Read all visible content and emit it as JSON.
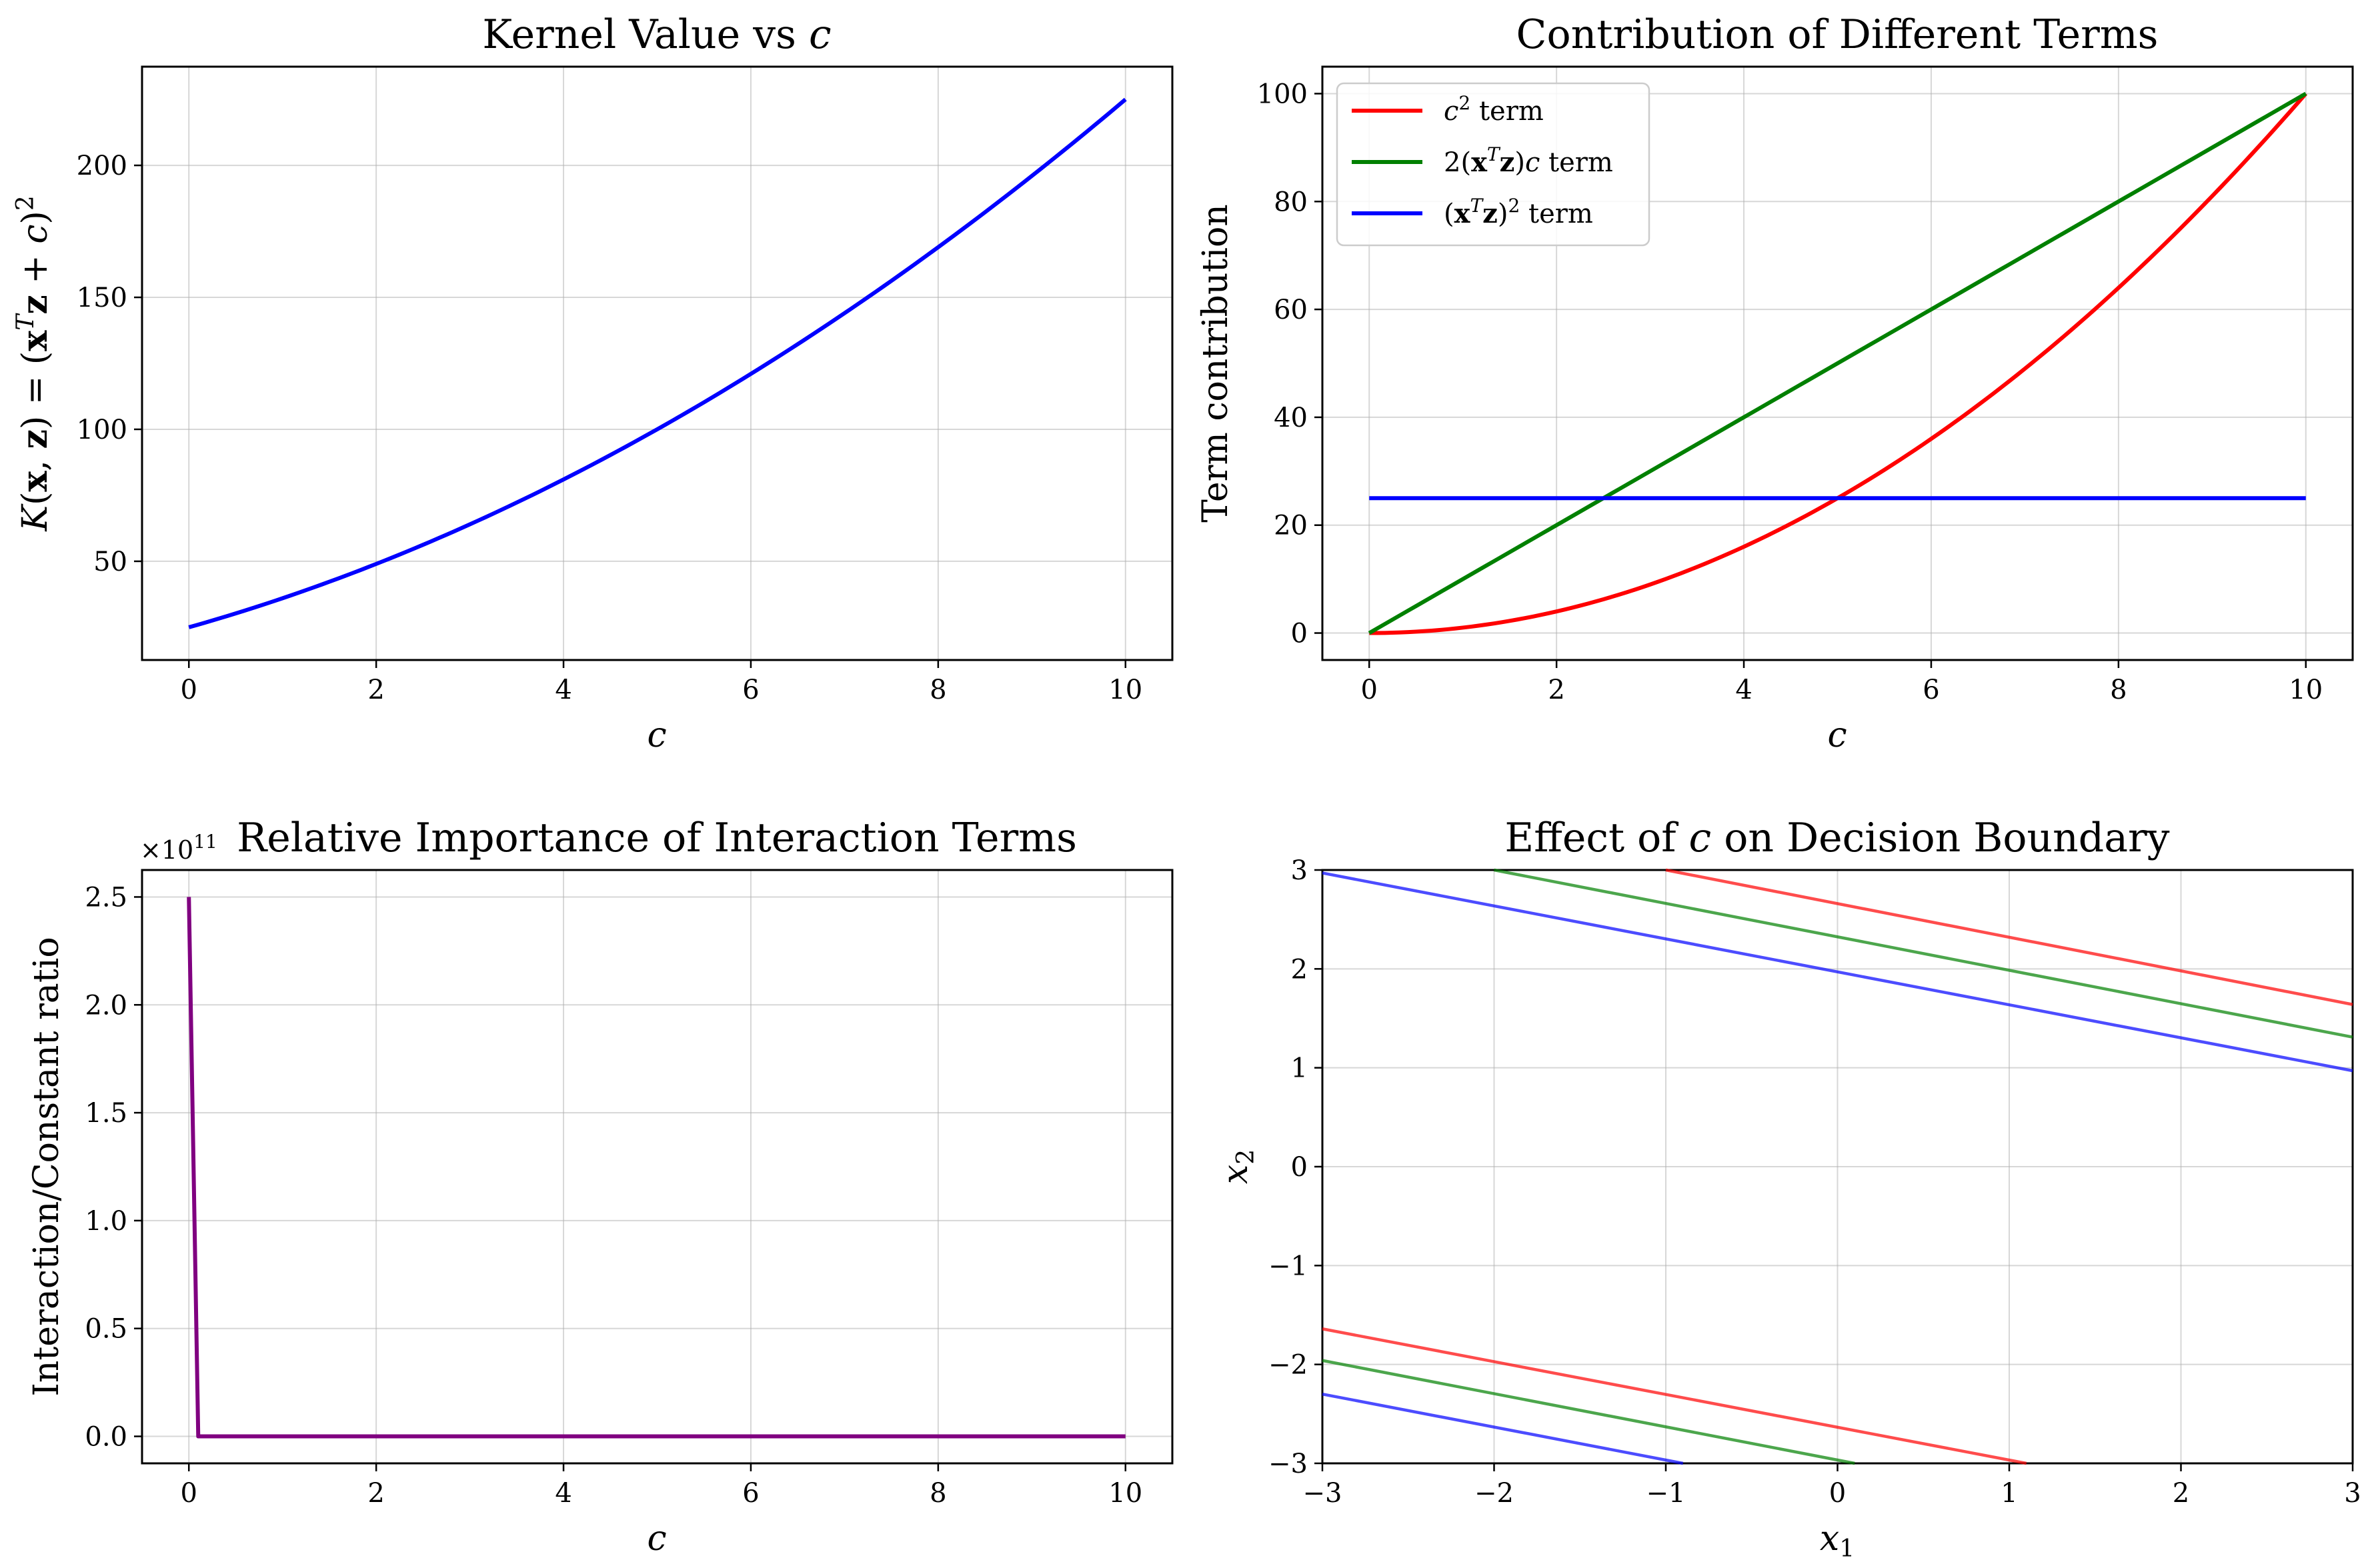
{
  "chart_data": [
    {
      "type": "line",
      "title": "Kernel Value vs c",
      "xlabel": "c",
      "ylabel": "K(x, z) = (xᵀz + c)²",
      "xlim": [
        -0.5,
        10.5
      ],
      "ylim": [
        12.6,
        237.4
      ],
      "xticks": [
        0,
        2,
        4,
        6,
        8,
        10
      ],
      "yticks": [
        50,
        100,
        150,
        200
      ],
      "grid": true,
      "series": [
        {
          "color": "#0000ff",
          "function": "(5 + c)^2",
          "x_range": [
            0,
            10
          ],
          "x": [
            0,
            1,
            2,
            3,
            4,
            5,
            6,
            7,
            8,
            9,
            10
          ],
          "values": [
            25,
            36,
            49,
            64,
            81,
            100,
            121,
            144,
            169,
            196,
            225
          ]
        }
      ]
    },
    {
      "type": "line",
      "title": "Contribution of Different Terms",
      "xlabel": "c",
      "ylabel": "Term contribution",
      "xlim": [
        -0.5,
        10.5
      ],
      "ylim": [
        -5,
        105
      ],
      "xticks": [
        0,
        2,
        4,
        6,
        8,
        10
      ],
      "yticks": [
        0,
        20,
        40,
        60,
        80,
        100
      ],
      "grid": true,
      "legend_position": "upper left",
      "series": [
        {
          "name": "c² term",
          "color": "#ff0000",
          "function": "c^2",
          "x_range": [
            0,
            10
          ],
          "x": [
            0,
            2,
            4,
            6,
            8,
            10
          ],
          "values": [
            0,
            4,
            16,
            36,
            64,
            100
          ]
        },
        {
          "name": "2(xᵀz)c term",
          "color": "#008000",
          "function": "10*c",
          "x_range": [
            0,
            10
          ],
          "x": [
            0,
            2,
            4,
            6,
            8,
            10
          ],
          "values": [
            0,
            20,
            40,
            60,
            80,
            100
          ]
        },
        {
          "name": "(xᵀz)² term",
          "color": "#0000ff",
          "function": "25",
          "x_range": [
            0,
            10
          ],
          "x": [
            0,
            2,
            4,
            6,
            8,
            10
          ],
          "values": [
            25,
            25,
            25,
            25,
            25,
            25
          ]
        }
      ]
    },
    {
      "type": "line",
      "title": "Relative Importance of Interaction Terms",
      "xlabel": "c",
      "ylabel": "Interaction/Constant ratio",
      "offset_text": "×10¹¹",
      "xlim": [
        -0.5,
        10.5
      ],
      "ylim": [
        -0.125,
        2.625
      ],
      "xticks": [
        0,
        2,
        4,
        6,
        8,
        10
      ],
      "yticks": [
        0.0,
        0.5,
        1.0,
        1.5,
        2.0,
        2.5
      ],
      "ytick_labels": [
        "0.0",
        "0.5",
        "1.0",
        "1.5",
        "2.0",
        "2.5"
      ],
      "grid": true,
      "series": [
        {
          "color": "#800080",
          "x": [
            0,
            0.1,
            10
          ],
          "values": [
            2.5,
            0,
            0
          ]
        }
      ]
    },
    {
      "type": "line",
      "title": "Effect of c on Decision Boundary",
      "xlabel": "x₁",
      "ylabel": "x₂",
      "xlim": [
        -3,
        3
      ],
      "ylim": [
        -3,
        3
      ],
      "xticks": [
        -3,
        -2,
        -1,
        0,
        1,
        2,
        3
      ],
      "yticks": [
        -3,
        -2,
        -1,
        0,
        1,
        2,
        3
      ],
      "xtick_labels": [
        "−3",
        "−2",
        "−1",
        "0",
        "1",
        "2",
        "3"
      ],
      "ytick_labels": [
        "−3",
        "−2",
        "−1",
        "0",
        "1",
        "2",
        "3"
      ],
      "grid": true,
      "series": [
        {
          "color": "#ff0000",
          "opacity": 0.7,
          "x": [
            -1.0,
            3.0
          ],
          "values": [
            3.0,
            1.64
          ]
        },
        {
          "color": "#ff0000",
          "opacity": 0.7,
          "x": [
            -3.0,
            1.1
          ],
          "values": [
            -1.64,
            -3.0
          ]
        },
        {
          "color": "#008000",
          "opacity": 0.7,
          "x": [
            -2.0,
            3.0
          ],
          "values": [
            3.0,
            1.31
          ]
        },
        {
          "color": "#008000",
          "opacity": 0.7,
          "x": [
            -3.0,
            0.1
          ],
          "values": [
            -1.96,
            -3.0
          ]
        },
        {
          "color": "#0000ff",
          "opacity": 0.7,
          "x": [
            -3.0,
            3.0
          ],
          "values": [
            2.97,
            0.97
          ]
        },
        {
          "color": "#0000ff",
          "opacity": 0.7,
          "x": [
            -3.0,
            -0.9
          ],
          "values": [
            -2.3,
            -3.0
          ]
        }
      ]
    }
  ]
}
